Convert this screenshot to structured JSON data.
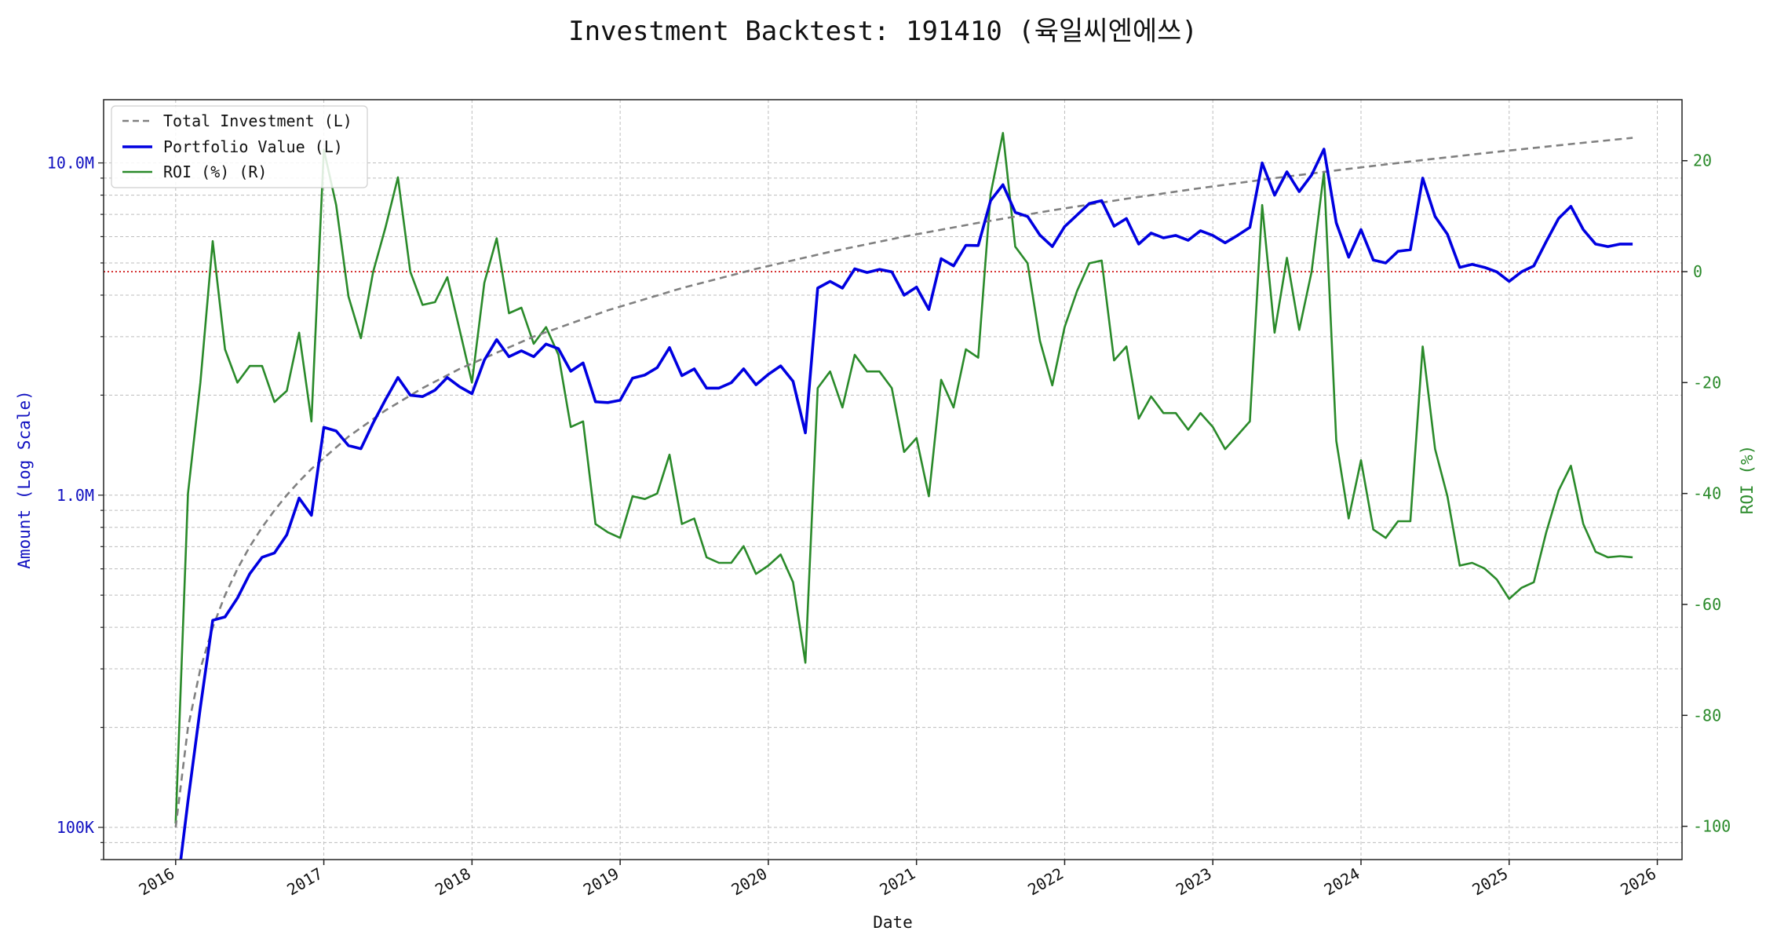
{
  "chart_data": {
    "type": "line",
    "title": "Investment Backtest: 191410 (육일씨엔에쓰)",
    "xlabel": "Date",
    "ylabel_left": "Amount (Log Scale)",
    "ylabel_right": "ROI (%)",
    "y_left_scale": "log",
    "y_left_lim": [
      80000,
      15500000
    ],
    "y_right_lim": [
      -106,
      31
    ],
    "x_lim": [
      "2015-07-06",
      "2026-03-01"
    ],
    "x_ticks": [
      "2016",
      "2017",
      "2018",
      "2019",
      "2020",
      "2021",
      "2022",
      "2023",
      "2024",
      "2025",
      "2026"
    ],
    "y_left_ticks": [
      {
        "value": 100000,
        "label": "100K"
      },
      {
        "value": 1000000,
        "label": "1.0M"
      },
      {
        "value": 10000000,
        "label": "10.0M"
      }
    ],
    "y_right_ticks": [
      20,
      0,
      -20,
      -40,
      -60,
      -80,
      -100
    ],
    "grid": true,
    "legend_position": "top-left",
    "reference_line": {
      "axis": "right",
      "value": 0,
      "style": "dotted",
      "color": "#cc0000"
    },
    "colors": {
      "investment": "#808080",
      "portfolio": "#0000e0",
      "roi": "#2a8a2a",
      "left_axis": "#1010c0",
      "right_axis": "#2a8a2a"
    },
    "series": [
      {
        "name": "Total Investment (L)",
        "axis": "left",
        "style": "dashed",
        "x": [
          "2016-01",
          "2016-02",
          "2016-03",
          "2016-04",
          "2016-05",
          "2016-06",
          "2016-07",
          "2016-08",
          "2016-09",
          "2016-10",
          "2016-11",
          "2016-12",
          "2017-03",
          "2017-06",
          "2017-09",
          "2017-12",
          "2018-06",
          "2018-12",
          "2019-06",
          "2019-12",
          "2020-06",
          "2020-12",
          "2021-06",
          "2021-12",
          "2022-06",
          "2022-12",
          "2023-06",
          "2023-12",
          "2024-06",
          "2024-12",
          "2025-06",
          "2025-11"
        ],
        "values": [
          100000,
          200000,
          300000,
          400000,
          500000,
          600000,
          700000,
          800000,
          900000,
          1000000,
          1100000,
          1200000,
          1500000,
          1800000,
          2100000,
          2400000,
          3000000,
          3600000,
          4200000,
          4800000,
          5400000,
          6000000,
          6600000,
          7200000,
          7800000,
          8400000,
          9000000,
          9600000,
          10200000,
          10800000,
          11400000,
          11900000
        ]
      },
      {
        "name": "Portfolio Value (L)",
        "axis": "left",
        "style": "solid",
        "x": [
          "2016-01",
          "2016-02",
          "2016-03",
          "2016-04",
          "2016-05",
          "2016-06",
          "2016-07",
          "2016-08",
          "2016-09",
          "2016-10",
          "2016-11",
          "2016-12",
          "2017-01",
          "2017-02",
          "2017-03",
          "2017-04",
          "2017-05",
          "2017-06",
          "2017-07",
          "2017-08",
          "2017-09",
          "2017-10",
          "2017-11",
          "2017-12",
          "2018-01",
          "2018-02",
          "2018-03",
          "2018-04",
          "2018-05",
          "2018-06",
          "2018-07",
          "2018-08",
          "2018-09",
          "2018-10",
          "2018-11",
          "2018-12",
          "2019-01",
          "2019-02",
          "2019-03",
          "2019-04",
          "2019-05",
          "2019-06",
          "2019-07",
          "2019-08",
          "2019-09",
          "2019-10",
          "2019-11",
          "2019-12",
          "2020-01",
          "2020-02",
          "2020-03",
          "2020-04",
          "2020-05",
          "2020-06",
          "2020-07",
          "2020-08",
          "2020-09",
          "2020-10",
          "2020-11",
          "2020-12",
          "2021-01",
          "2021-02",
          "2021-03",
          "2021-04",
          "2021-05",
          "2021-06",
          "2021-07",
          "2021-08",
          "2021-09",
          "2021-10",
          "2021-11",
          "2021-12",
          "2022-01",
          "2022-02",
          "2022-03",
          "2022-04",
          "2022-05",
          "2022-06",
          "2022-07",
          "2022-08",
          "2022-09",
          "2022-10",
          "2022-11",
          "2022-12",
          "2023-01",
          "2023-02",
          "2023-03",
          "2023-04",
          "2023-05",
          "2023-06",
          "2023-07",
          "2023-08",
          "2023-09",
          "2023-10",
          "2023-11",
          "2023-12",
          "2024-01",
          "2024-02",
          "2024-03",
          "2024-04",
          "2024-05",
          "2024-06",
          "2024-07",
          "2024-08",
          "2024-09",
          "2024-10",
          "2024-11",
          "2024-12",
          "2025-01",
          "2025-02",
          "2025-03",
          "2025-04",
          "2025-05",
          "2025-06",
          "2025-07",
          "2025-08",
          "2025-09",
          "2025-10",
          "2025-11"
        ],
        "values": [
          60000,
          120000,
          230000,
          420000,
          430000,
          490000,
          580000,
          650000,
          670000,
          760000,
          980000,
          870000,
          1600000,
          1560000,
          1410000,
          1380000,
          1650000,
          1940000,
          2260000,
          2000000,
          1980000,
          2070000,
          2260000,
          2120000,
          2020000,
          2550000,
          2940000,
          2610000,
          2720000,
          2610000,
          2850000,
          2760000,
          2360000,
          2500000,
          1910000,
          1900000,
          1930000,
          2250000,
          2300000,
          2420000,
          2780000,
          2290000,
          2400000,
          2100000,
          2100000,
          2180000,
          2400000,
          2150000,
          2310000,
          2450000,
          2200000,
          1540000,
          4200000,
          4400000,
          4200000,
          4800000,
          4680000,
          4780000,
          4700000,
          4000000,
          4230000,
          3620000,
          5150000,
          4900000,
          5650000,
          5640000,
          7700000,
          8600000,
          7100000,
          6900000,
          6060000,
          5600000,
          6430000,
          6970000,
          7550000,
          7700000,
          6450000,
          6800000,
          5700000,
          6150000,
          5950000,
          6050000,
          5850000,
          6250000,
          6050000,
          5750000,
          6050000,
          6400000,
          10000000,
          8000000,
          9400000,
          8200000,
          9200000,
          11000000,
          6600000,
          5200000,
          6300000,
          5100000,
          5000000,
          5420000,
          5480000,
          9000000,
          6900000,
          6100000,
          4850000,
          4950000,
          4850000,
          4700000,
          4400000,
          4700000,
          4900000,
          5800000,
          6800000,
          7400000,
          6300000,
          5700000,
          5600000,
          5700000,
          5700000
        ]
      },
      {
        "name": "ROI (%) (R)",
        "axis": "right",
        "style": "solid",
        "x": [
          "2016-01",
          "2016-02",
          "2016-03",
          "2016-04",
          "2016-05",
          "2016-06",
          "2016-07",
          "2016-08",
          "2016-09",
          "2016-10",
          "2016-11",
          "2016-12",
          "2017-01",
          "2017-02",
          "2017-03",
          "2017-04",
          "2017-05",
          "2017-06",
          "2017-07",
          "2017-08",
          "2017-09",
          "2017-10",
          "2017-11",
          "2017-12",
          "2018-01",
          "2018-02",
          "2018-03",
          "2018-04",
          "2018-05",
          "2018-06",
          "2018-07",
          "2018-08",
          "2018-09",
          "2018-10",
          "2018-11",
          "2018-12",
          "2019-01",
          "2019-02",
          "2019-03",
          "2019-04",
          "2019-05",
          "2019-06",
          "2019-07",
          "2019-08",
          "2019-09",
          "2019-10",
          "2019-11",
          "2019-12",
          "2020-01",
          "2020-02",
          "2020-03",
          "2020-04",
          "2020-05",
          "2020-06",
          "2020-07",
          "2020-08",
          "2020-09",
          "2020-10",
          "2020-11",
          "2020-12",
          "2021-01",
          "2021-02",
          "2021-03",
          "2021-04",
          "2021-05",
          "2021-06",
          "2021-07",
          "2021-08",
          "2021-09",
          "2021-10",
          "2021-11",
          "2021-12",
          "2022-01",
          "2022-02",
          "2022-03",
          "2022-04",
          "2022-05",
          "2022-06",
          "2022-07",
          "2022-08",
          "2022-09",
          "2022-10",
          "2022-11",
          "2022-12",
          "2023-01",
          "2023-02",
          "2023-03",
          "2023-04",
          "2023-05",
          "2023-06",
          "2023-07",
          "2023-08",
          "2023-09",
          "2023-10",
          "2023-11",
          "2023-12",
          "2024-01",
          "2024-02",
          "2024-03",
          "2024-04",
          "2024-05",
          "2024-06",
          "2024-07",
          "2024-08",
          "2024-09",
          "2024-10",
          "2024-11",
          "2024-12",
          "2025-01",
          "2025-02",
          "2025-03",
          "2025-04",
          "2025-05",
          "2025-06",
          "2025-07",
          "2025-08",
          "2025-09",
          "2025-10",
          "2025-11"
        ],
        "values": [
          -99.5,
          -40,
          -20,
          5.5,
          -14,
          -20,
          -17,
          -17,
          -23.5,
          -21.5,
          -11,
          -27,
          22,
          12,
          -4.5,
          -12,
          0,
          8,
          17,
          0,
          -6,
          -5.5,
          -1,
          -10.5,
          -20,
          -2,
          6,
          -7.5,
          -6.5,
          -13,
          -10,
          -15,
          -28,
          -27,
          -45.5,
          -47,
          -48,
          -40.5,
          -41,
          -40,
          -33,
          -45.5,
          -44.5,
          -51.5,
          -52.5,
          -52.5,
          -49.5,
          -54.5,
          -53,
          -51,
          -56,
          -70.5,
          -21,
          -18,
          -24.5,
          -15,
          -18,
          -18,
          -21,
          -32.5,
          -30,
          -40.5,
          -19.5,
          -24.5,
          -14,
          -15.5,
          14,
          25,
          4.5,
          1.5,
          -12.5,
          -20.5,
          -10,
          -3.5,
          1.5,
          2,
          -16,
          -13.5,
          -26.5,
          -22.5,
          -25.5,
          -25.5,
          -28.5,
          -25.5,
          -28,
          -32,
          -29.5,
          -27,
          12,
          -11,
          2.5,
          -10.5,
          0,
          18,
          -30.5,
          -44.5,
          -34,
          -46.5,
          -48,
          -45,
          -45,
          -13.5,
          -32,
          -40.5,
          -53,
          -52.5,
          -53.5,
          -55.5,
          -59,
          -57,
          -56,
          -47,
          -39.5,
          -35,
          -45.5,
          -50.5,
          -51.5,
          -51.3,
          -51.5
        ]
      }
    ]
  }
}
